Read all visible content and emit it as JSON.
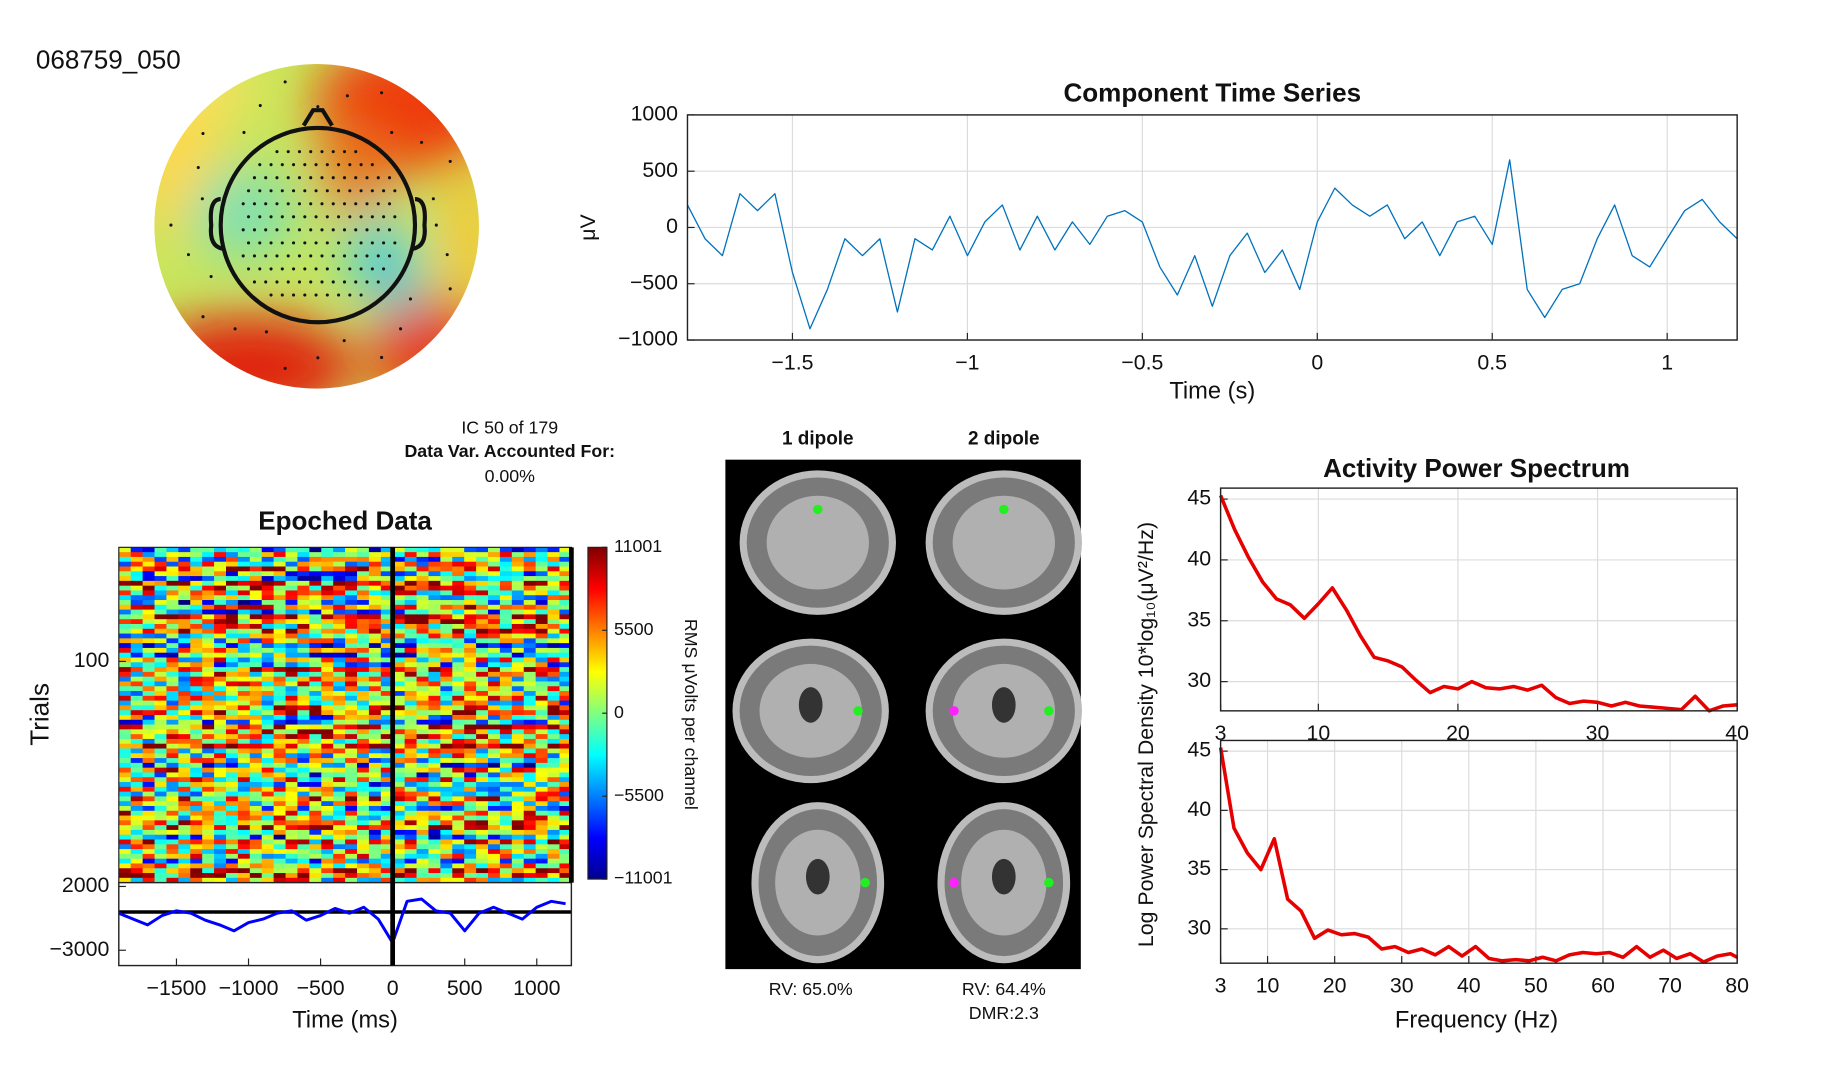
{
  "chart_data": [
    {
      "type": "topomap",
      "title": "068759_050"
    },
    {
      "type": "line",
      "title": "Component Time Series",
      "xlabel": "Time (s)",
      "ylabel": "μV",
      "xlim": [
        -1.8,
        1.2
      ],
      "ylim": [
        -1000,
        1000
      ],
      "grid": true,
      "xticks": [
        {
          "value": -1.5,
          "label": "−1.5"
        },
        {
          "value": -1,
          "label": "−1"
        },
        {
          "value": -0.5,
          "label": "−0.5"
        },
        0,
        0.5,
        1
      ],
      "yticks": [
        {
          "value": -1000,
          "label": "−1000"
        },
        {
          "value": -500,
          "label": "−500"
        },
        0,
        500,
        1000
      ],
      "x": [
        -1.8,
        -1.75,
        -1.7,
        -1.65,
        -1.6,
        -1.55,
        -1.5,
        -1.45,
        -1.4,
        -1.35,
        -1.3,
        -1.25,
        -1.2,
        -1.15,
        -1.1,
        -1.05,
        -1,
        -0.95,
        -0.9,
        -0.85,
        -0.8,
        -0.75,
        -0.7,
        -0.65,
        -0.6,
        -0.55,
        -0.5,
        -0.45,
        -0.4,
        -0.35,
        -0.3,
        -0.25,
        -0.2,
        -0.15,
        -0.1,
        -0.05,
        0,
        0.05,
        0.1,
        0.15,
        0.2,
        0.25,
        0.3,
        0.35,
        0.4,
        0.45,
        0.5,
        0.55,
        0.6,
        0.65,
        0.7,
        0.75,
        0.8,
        0.85,
        0.9,
        0.95,
        1,
        1.05,
        1.1,
        1.15,
        1.2
      ],
      "series": [
        {
          "color": "#0072bd",
          "values": [
            200,
            -100,
            -250,
            300,
            150,
            300,
            -400,
            -900,
            -550,
            -100,
            -250,
            -100,
            -750,
            -100,
            -200,
            100,
            -250,
            50,
            200,
            -200,
            100,
            -200,
            50,
            -150,
            100,
            150,
            50,
            -350,
            -600,
            -250,
            -700,
            -250,
            -50,
            -400,
            -200,
            -550,
            50,
            350,
            200,
            100,
            200,
            -100,
            50,
            -250,
            50,
            100,
            -150,
            600,
            -550,
            -800,
            -550,
            -500,
            -100,
            200,
            -250,
            -350,
            -100,
            150,
            250,
            50,
            -100
          ]
        }
      ]
    },
    {
      "type": "erpimage",
      "title": "Epoched Data",
      "ic": "IC 50 of 179",
      "var_label": "Data Var. Accounted For:",
      "var_value": "0.00%",
      "ylabel": "Trials",
      "ylim": [
        1,
        292
      ],
      "yticks": [
        100
      ],
      "vline": 0,
      "colorbar": {
        "clim": [
          -11001,
          11001
        ],
        "label": "RMS μVolts per channel",
        "ticks": [
          {
            "value": -11001,
            "label": "−11001"
          },
          {
            "value": -5500,
            "label": "−5500"
          },
          0,
          5500,
          11001
        ]
      },
      "erp": {
        "xlabel": "Time (ms)",
        "xlim": [
          -1900,
          1240
        ],
        "ylim": [
          -4200,
          2300
        ],
        "refline": 0,
        "xticks": [
          {
            "value": -1500,
            "label": "−1500"
          },
          {
            "value": -1000,
            "label": "−1000"
          },
          {
            "value": -500,
            "label": "−500"
          },
          0,
          500,
          1000
        ],
        "yticks": [
          {
            "value": -3000,
            "label": "−3000"
          },
          2000
        ],
        "x": [
          -1900,
          -1800,
          -1700,
          -1600,
          -1500,
          -1400,
          -1300,
          -1200,
          -1100,
          -1000,
          -900,
          -800,
          -700,
          -600,
          -500,
          -400,
          -300,
          -200,
          -100,
          0,
          100,
          200,
          300,
          400,
          500,
          600,
          700,
          800,
          900,
          1000,
          1100,
          1200
        ],
        "series": [
          {
            "color": "#0000ff",
            "values": [
              -93,
              -556,
              -1019,
              -278,
              93,
              -93,
              -648,
              -1019,
              -1482,
              -833,
              -556,
              -93,
              93,
              -648,
              -278,
              278,
              -93,
              370,
              -556,
              -2408,
              833,
              1019,
              93,
              -93,
              -1482,
              -93,
              370,
              -93,
              -556,
              370,
              833,
              648
            ]
          }
        ]
      }
    },
    {
      "type": "dipole",
      "panels": [
        {
          "title": "1 dipole",
          "labels": [
            "RV: 65.0%"
          ]
        },
        {
          "title": "2 dipole",
          "labels": [
            "RV: 64.4%",
            "DMR:2.3"
          ]
        }
      ]
    },
    {
      "type": "line",
      "title": "Activity Power Spectrum",
      "ylabel": "Log Power Spectral Density 10*log₁₀(μV²/Hz)",
      "xlim": [
        3,
        40
      ],
      "ylim": [
        27.6,
        45.9
      ],
      "grid": true,
      "xticks": [
        3,
        10,
        20,
        30,
        40
      ],
      "yticks": [
        30,
        35,
        40,
        45
      ],
      "x": [
        3,
        4,
        5,
        6,
        7,
        8,
        9,
        10,
        11,
        12,
        13,
        14,
        15,
        16,
        17,
        18,
        19,
        20,
        21,
        22,
        23,
        24,
        25,
        26,
        27,
        28,
        29,
        30,
        31,
        32,
        33,
        34,
        35,
        36,
        37,
        38,
        39,
        40
      ],
      "series": [
        {
          "color": "#e60000",
          "values": [
            45.3,
            42.5,
            40.2,
            38.2,
            36.8,
            36.3,
            35.2,
            36.4,
            37.7,
            35.9,
            33.8,
            32.0,
            31.7,
            31.2,
            30.1,
            29.1,
            29.6,
            29.4,
            30.0,
            29.5,
            29.4,
            29.6,
            29.3,
            29.7,
            28.7,
            28.2,
            28.4,
            28.3,
            28.0,
            28.3,
            28.0,
            27.9,
            27.8,
            27.7,
            28.8,
            27.6,
            28.0,
            28.1
          ]
        }
      ]
    },
    {
      "type": "line",
      "xlabel": "Frequency (Hz)",
      "xlim": [
        3,
        80
      ],
      "ylim": [
        27.1,
        45.9
      ],
      "grid": true,
      "xticks": [
        3,
        10,
        20,
        30,
        40,
        50,
        60,
        70,
        80
      ],
      "yticks": [
        30,
        35,
        40,
        45
      ],
      "x": [
        3,
        5,
        7,
        9,
        11,
        13,
        15,
        17,
        19,
        21,
        23,
        25,
        27,
        29,
        31,
        33,
        35,
        37,
        39,
        41,
        43,
        45,
        47,
        49,
        51,
        53,
        55,
        57,
        59,
        61,
        63,
        65,
        67,
        69,
        71,
        73,
        75,
        77,
        79,
        80
      ],
      "series": [
        {
          "color": "#e60000",
          "values": [
            45.3,
            38.5,
            36.4,
            35,
            37.6,
            32.5,
            31.5,
            29.2,
            29.9,
            29.5,
            29.6,
            29.3,
            28.3,
            28.5,
            28.0,
            28.3,
            27.8,
            28.5,
            27.7,
            28.5,
            27.5,
            27.3,
            27.4,
            27.3,
            27.6,
            27.3,
            27.8,
            28.0,
            27.9,
            28.0,
            27.6,
            28.5,
            27.6,
            28.2,
            27.5,
            27.9,
            27.2,
            27.7,
            27.9,
            27.6
          ]
        }
      ]
    }
  ]
}
